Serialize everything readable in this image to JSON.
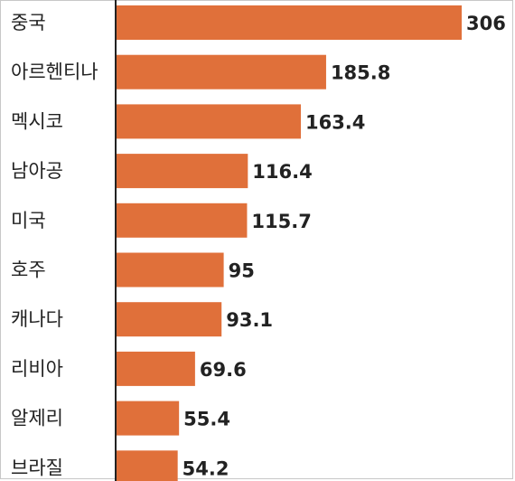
{
  "chart_data": {
    "type": "bar",
    "orientation": "horizontal",
    "categories": [
      "중국",
      "아르헨티나",
      "멕시코",
      "남아공",
      "미국",
      "호주",
      "캐나다",
      "리비아",
      "알제리",
      "브라질"
    ],
    "values": [
      306,
      185.8,
      163.4,
      116.4,
      115.7,
      95,
      93.1,
      69.6,
      55.4,
      54.2
    ],
    "value_labels": [
      "306",
      "185.8",
      "163.4",
      "116.4",
      "115.7",
      "95",
      "93.1",
      "69.6",
      "55.4",
      "54.2"
    ],
    "title": "",
    "xlabel": "",
    "ylabel": "",
    "xlim": [
      0,
      306
    ],
    "grid": false,
    "legend": "none",
    "bar_color": "#e0703a"
  }
}
